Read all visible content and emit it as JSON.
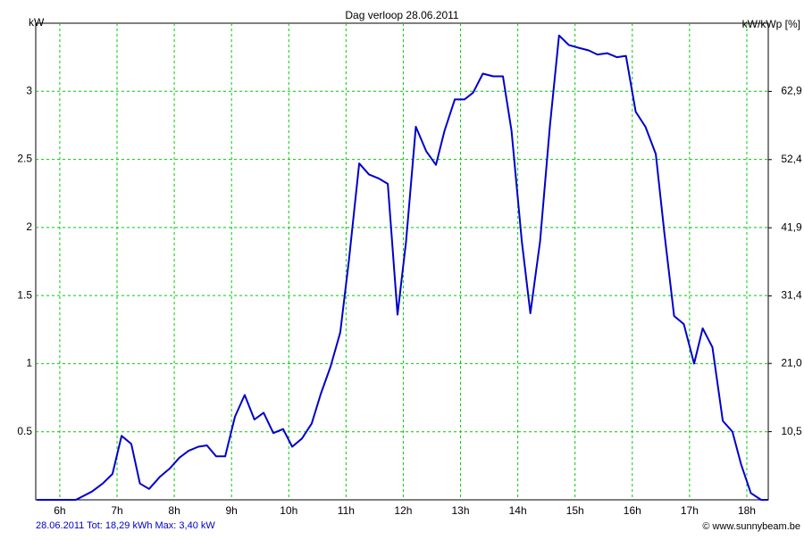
{
  "chart_data": {
    "type": "line",
    "title": "Dag  verloop 28.06.2011",
    "y_label": "kW",
    "y2_label": "kW/kWp [%]",
    "footer_left": "28.06.2011 Tot: 18,29 kWh Max: 3,40 kW",
    "footer_right": "© www.sunnybeam.be",
    "x": [
      5.6,
      6.0,
      6.28,
      6.56,
      6.75,
      6.92,
      7.08,
      7.25,
      7.4,
      7.56,
      7.75,
      7.92,
      8.09,
      8.25,
      8.42,
      8.57,
      8.73,
      8.89,
      9.06,
      9.23,
      9.4,
      9.56,
      9.73,
      9.9,
      10.06,
      10.23,
      10.4,
      10.56,
      10.73,
      10.9,
      11.05,
      11.23,
      11.4,
      11.57,
      11.73,
      11.9,
      12.05,
      12.22,
      12.4,
      12.57,
      12.72,
      12.9,
      13.07,
      13.22,
      13.39,
      13.57,
      13.74,
      13.89,
      14.07,
      14.22,
      14.39,
      14.56,
      14.72,
      14.89,
      15.06,
      15.24,
      15.39,
      15.56,
      15.73,
      15.89,
      16.06,
      16.23,
      16.41,
      16.56,
      16.73,
      16.9,
      17.08,
      17.23,
      17.4,
      17.58,
      17.75,
      17.9,
      18.07,
      18.25,
      18.37
    ],
    "series": [
      {
        "name": "kW",
        "color": "#0000cc",
        "values": [
          0,
          0,
          0,
          0.06,
          0.12,
          0.19,
          0.47,
          0.41,
          0.12,
          0.08,
          0.17,
          0.23,
          0.31,
          0.36,
          0.39,
          0.4,
          0.32,
          0.32,
          0.61,
          0.77,
          0.59,
          0.64,
          0.49,
          0.52,
          0.39,
          0.45,
          0.56,
          0.78,
          0.98,
          1.23,
          1.76,
          2.47,
          2.39,
          2.36,
          2.32,
          1.36,
          1.9,
          2.74,
          2.56,
          2.46,
          2.71,
          2.94,
          2.94,
          2.99,
          3.13,
          3.11,
          3.11,
          2.71,
          1.9,
          1.37,
          1.9,
          2.74,
          3.41,
          3.34,
          3.32,
          3.3,
          3.27,
          3.28,
          3.25,
          3.26,
          2.85,
          2.74,
          2.54,
          1.96,
          1.35,
          1.29,
          1.0,
          1.26,
          1.12,
          0.58,
          0.5,
          0.26,
          0.05,
          0,
          0
        ]
      }
    ],
    "xlim": [
      5.58,
      18.375
    ],
    "xticks": [
      {
        "value": 6,
        "label": "6h"
      },
      {
        "value": 7,
        "label": "7h"
      },
      {
        "value": 8,
        "label": "8h"
      },
      {
        "value": 9,
        "label": "9h"
      },
      {
        "value": 10,
        "label": "10h"
      },
      {
        "value": 11,
        "label": "11h"
      },
      {
        "value": 12,
        "label": "12h"
      },
      {
        "value": 13,
        "label": "13h"
      },
      {
        "value": 14,
        "label": "14h"
      },
      {
        "value": 15,
        "label": "15h"
      },
      {
        "value": 16,
        "label": "16h"
      },
      {
        "value": 17,
        "label": "17h"
      },
      {
        "value": 18,
        "label": "18h"
      }
    ],
    "ylim": [
      0,
      3.5
    ],
    "yticks": [
      0.5,
      1,
      1.5,
      2,
      2.5,
      3
    ],
    "y2lim": [
      0,
      73.4
    ],
    "y2ticks": [
      {
        "value": 10.5,
        "label": "10,5"
      },
      {
        "value": 21.0,
        "label": "21,0"
      },
      {
        "value": 31.4,
        "label": "31,4"
      },
      {
        "value": 41.9,
        "label": "41,9"
      },
      {
        "value": 52.4,
        "label": "52,4"
      },
      {
        "value": 62.9,
        "label": "62,9"
      }
    ],
    "grid": true,
    "grid_color": "#00cc00"
  }
}
